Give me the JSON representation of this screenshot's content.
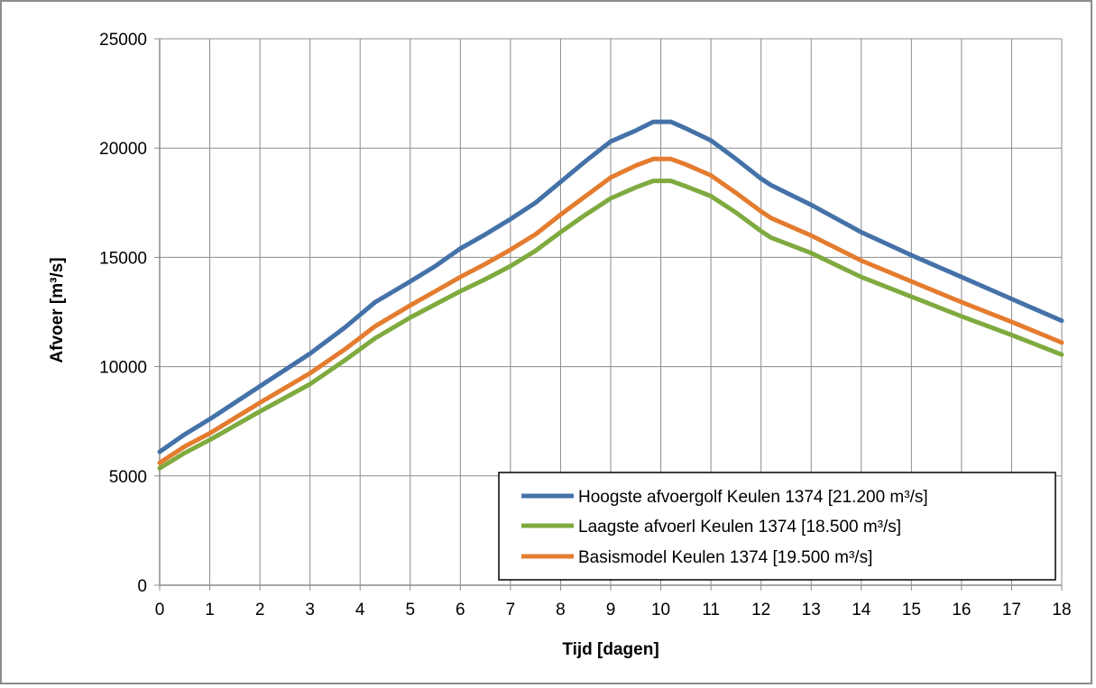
{
  "chart_data": {
    "type": "line",
    "title": "",
    "xlabel": "Tijd [dagen]",
    "ylabel": "Afvoer [m³/s]",
    "xlim": [
      0,
      18
    ],
    "ylim": [
      0,
      25000
    ],
    "x_ticks": [
      "0",
      "1",
      "2",
      "3",
      "4",
      "5",
      "6",
      "7",
      "8",
      "9",
      "10",
      "11",
      "12",
      "13",
      "14",
      "15",
      "16",
      "17",
      "18"
    ],
    "y_ticks": [
      "0",
      "5000",
      "10000",
      "15000",
      "20000",
      "25000"
    ],
    "grid": true,
    "legend_position": "bottom-right",
    "series": [
      {
        "name": "Hoogste afvoergolf Keulen 1374 [21.200 m³/s]",
        "color": "#4472a8",
        "x": [
          0,
          0.5,
          1,
          2,
          3,
          3.7,
          4.3,
          5,
          5.5,
          6,
          6.5,
          7,
          7.5,
          8,
          8.5,
          9,
          9.5,
          9.85,
          10.2,
          10.5,
          11,
          11.5,
          12,
          12.2,
          13,
          14,
          15,
          16,
          17,
          18
        ],
        "y": [
          6100,
          6900,
          7600,
          9100,
          10600,
          11800,
          12950,
          13900,
          14600,
          15400,
          16050,
          16750,
          17500,
          18450,
          19400,
          20300,
          20800,
          21200,
          21200,
          20900,
          20350,
          19500,
          18600,
          18300,
          17400,
          16150,
          15100,
          14100,
          13100,
          12100
        ]
      },
      {
        "name": "Laagste afvoerl Keulen 1374 [18.500 m³/s]",
        "color": "#7faa3f",
        "x": [
          0,
          0.5,
          1,
          2,
          3,
          3.7,
          4.3,
          5,
          5.5,
          6,
          6.5,
          7,
          7.5,
          8,
          8.5,
          9,
          9.5,
          9.85,
          10.2,
          10.5,
          11,
          11.5,
          12,
          12.2,
          13,
          14,
          15,
          16,
          17,
          18
        ],
        "y": [
          5350,
          6050,
          6650,
          7950,
          9200,
          10300,
          11300,
          12250,
          12850,
          13450,
          14000,
          14600,
          15300,
          16150,
          16950,
          17700,
          18200,
          18500,
          18500,
          18250,
          17800,
          17050,
          16200,
          15900,
          15200,
          14100,
          13200,
          12300,
          11450,
          10550
        ]
      },
      {
        "name": "Basismodel Keulen 1374 [19.500 m³/s]",
        "color": "#e47c2f",
        "x": [
          0,
          0.5,
          1,
          2,
          3,
          3.7,
          4.3,
          5,
          5.5,
          6,
          6.5,
          7,
          7.5,
          8,
          8.5,
          9,
          9.5,
          9.85,
          10.2,
          10.5,
          11,
          11.5,
          12,
          12.2,
          13,
          14,
          15,
          16,
          17,
          18
        ],
        "y": [
          5600,
          6350,
          6950,
          8350,
          9700,
          10800,
          11850,
          12800,
          13450,
          14100,
          14700,
          15350,
          16050,
          16950,
          17800,
          18650,
          19200,
          19500,
          19500,
          19250,
          18750,
          17950,
          17100,
          16800,
          16000,
          14850,
          13900,
          12950,
          12050,
          11100
        ]
      }
    ]
  }
}
